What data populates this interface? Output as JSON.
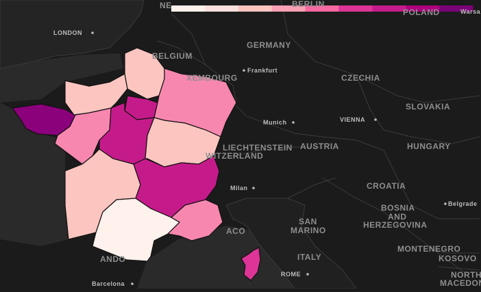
{
  "map": {
    "country_labels": [
      {
        "key": "germany",
        "text": "GERMANY"
      },
      {
        "key": "belgium",
        "text": "BELGIUM"
      },
      {
        "key": "luxembourg",
        "text": "XEMBOURG"
      },
      {
        "key": "czechia",
        "text": "CZECHIA"
      },
      {
        "key": "slovakia",
        "text": "SLOVAKIA"
      },
      {
        "key": "austria",
        "text": "AUSTRIA"
      },
      {
        "key": "liechtenstein",
        "text": "LIECHTENSTEIN"
      },
      {
        "key": "switzerland",
        "text": "WITZERLAND"
      },
      {
        "key": "hungary",
        "text": "HUNGARY"
      },
      {
        "key": "croatia",
        "text": "CROATIA"
      },
      {
        "key": "bosnia1",
        "text": "BOSNIA"
      },
      {
        "key": "bosnia2",
        "text": "AND"
      },
      {
        "key": "bosnia3",
        "text": "HERZEGOVINA"
      },
      {
        "key": "sanmarino1",
        "text": "SAN"
      },
      {
        "key": "sanmarino2",
        "text": "MARINO"
      },
      {
        "key": "italy",
        "text": "ITALY"
      },
      {
        "key": "montenegro",
        "text": "MONTENEGRO"
      },
      {
        "key": "kosovo",
        "text": "KOSOVO"
      },
      {
        "key": "north",
        "text": "NORTH"
      },
      {
        "key": "macedonia",
        "text": "MACEDON"
      },
      {
        "key": "poland",
        "text": "POLAND"
      },
      {
        "key": "andorra",
        "text": "ANDO"
      },
      {
        "key": "monaco",
        "text": "ACO"
      },
      {
        "key": "netherlands",
        "text": "NE"
      },
      {
        "key": "berlin",
        "text": "BERLIN"
      }
    ],
    "cities": [
      {
        "key": "london",
        "text": "LONDON"
      },
      {
        "key": "frankfurt",
        "text": "Frankfurt"
      },
      {
        "key": "munich",
        "text": "Munich"
      },
      {
        "key": "vienna",
        "text": "VIENNA"
      },
      {
        "key": "milan",
        "text": "Milan"
      },
      {
        "key": "rome",
        "text": "ROME"
      },
      {
        "key": "barcelona",
        "text": "Barcelona"
      },
      {
        "key": "belgrade",
        "text": "Belgrade"
      },
      {
        "key": "warsaw",
        "text": "Warsa"
      }
    ],
    "colors": {
      "background": "#1b1b1b",
      "land": "#222222",
      "sea": "#2b2b2b",
      "border": "#3a3a3a"
    },
    "regions": [
      {
        "name": "brittany",
        "color": "#8b007b"
      },
      {
        "name": "normandy",
        "color": "#fcc5c0"
      },
      {
        "name": "hauts-de-france",
        "color": "#fcc5c0"
      },
      {
        "name": "ile-de-france",
        "color": "#c51b8a"
      },
      {
        "name": "grand-est",
        "color": "#f887b0"
      },
      {
        "name": "pays-de-la-loire",
        "color": "#f887b0"
      },
      {
        "name": "centre-val-de-loire",
        "color": "#c51b8a"
      },
      {
        "name": "bourgogne-franche-comte",
        "color": "#fcc5c0"
      },
      {
        "name": "nouvelle-aquitaine",
        "color": "#fcc5c0"
      },
      {
        "name": "auvergne-rhone-alpes",
        "color": "#c51b8a"
      },
      {
        "name": "occitanie",
        "color": "#fff1ec"
      },
      {
        "name": "provence-alpes-cote-dazur",
        "color": "#f887b0"
      },
      {
        "name": "corsica",
        "color": "#dd3497"
      }
    ],
    "legend": {
      "colors": [
        "#fff1ec",
        "#fde0dd",
        "#fcc5c0",
        "#fa9fb5",
        "#f768a1",
        "#dd3497",
        "#c51b8a",
        "#ae017e",
        "#7a0177"
      ]
    }
  }
}
